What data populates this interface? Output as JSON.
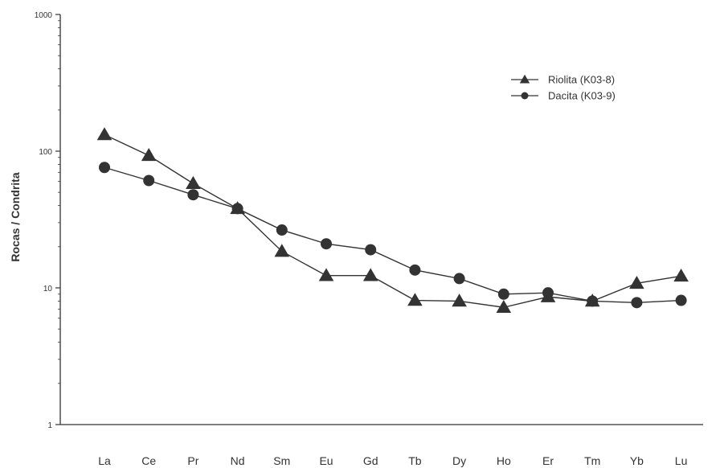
{
  "chart_data": {
    "type": "line",
    "ylabel": "Rocas / Condrita",
    "xlabel": "",
    "yscale": "log",
    "ylim": [
      1,
      1000
    ],
    "yticks": [
      1,
      10,
      100,
      1000
    ],
    "ytick_labels": [
      "1",
      "10",
      "100",
      "1000"
    ],
    "categories": [
      "La",
      "Ce",
      "Pr",
      "Nd",
      "Sm",
      "Eu",
      "Gd",
      "Tb",
      "Dy",
      "Ho",
      "Er",
      "Tm",
      "Yb",
      "Lu"
    ],
    "legend_position": "top-right",
    "grid": false,
    "series": [
      {
        "name": "Riolita (K03-8)",
        "marker": "triangle",
        "values": [
          132,
          93,
          58,
          38,
          18.5,
          12.3,
          12.3,
          8.1,
          8.0,
          7.2,
          8.6,
          8.0,
          10.8,
          12.2
        ]
      },
      {
        "name": "Dacita (K03-9)",
        "marker": "circle",
        "values": [
          76,
          61,
          48,
          38,
          26.5,
          21,
          19,
          13.5,
          11.7,
          9.0,
          9.2,
          8.0,
          7.8,
          8.1
        ]
      }
    ],
    "colors": {
      "line": "#333333",
      "axis": "#333333"
    }
  }
}
